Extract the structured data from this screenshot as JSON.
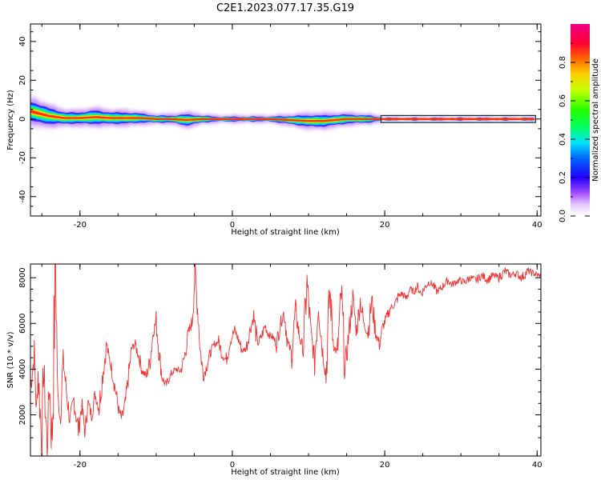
{
  "title": "C2E1.2023.077.17.35.G19",
  "chart_data": [
    {
      "type": "heatmap",
      "xlabel": "Height of straight line (km)",
      "ylabel": "Frequency (Hz)",
      "xlim": [
        -26.5,
        40.5
      ],
      "ylim": [
        -50,
        49
      ],
      "xticks": [
        "-20",
        "0",
        "20",
        "40"
      ],
      "yticks": [
        "-40",
        "-20",
        "0",
        "20",
        "40"
      ],
      "colorbar": {
        "label": "Normalized spectral amplitude",
        "range": [
          0.0,
          1.0
        ],
        "ticks": [
          "0.0",
          "0.2",
          "0.4",
          "0.6",
          "0.8"
        ],
        "colormap": "rainbow (white-violet-blue-cyan-green-yellow-orange-red-magenta)"
      },
      "ridge": {
        "description": "Spectral energy concentrated near 0 Hz across all heights; broader spread at low heights",
        "x": [
          -26.5,
          -24,
          -22,
          -20,
          -18,
          -16,
          -14,
          -12,
          -10,
          -8,
          -6,
          -4,
          -2,
          0,
          5,
          10,
          12,
          15,
          18,
          20,
          25,
          30,
          35,
          40
        ],
        "frequency_center": [
          4,
          1.5,
          0.5,
          0.5,
          1,
          0.5,
          0.5,
          0.5,
          0,
          0,
          -0.5,
          0,
          0,
          0,
          0,
          -1,
          -1,
          0,
          0,
          0,
          0,
          0,
          0,
          0
        ],
        "spread_hz": [
          9,
          7,
          5,
          5,
          6,
          5,
          5,
          4,
          3,
          3,
          5,
          3,
          2,
          2,
          2,
          5,
          5,
          4,
          3,
          1,
          1,
          1,
          1,
          1
        ]
      }
    },
    {
      "type": "line",
      "xlabel": "Height of straight line (km)",
      "ylabel": "SNR (10 * v/v)",
      "xlim": [
        -26.5,
        40.5
      ],
      "ylim": [
        200,
        8600
      ],
      "xticks": [
        "-20",
        "0",
        "20",
        "40"
      ],
      "yticks": [
        "2000",
        "4000",
        "6000",
        "8000"
      ],
      "series": [
        {
          "color": "#ee3333",
          "x": [
            -26.5,
            -26,
            -25.7,
            -25.5,
            -25,
            -24.8,
            -24.3,
            -24,
            -23.7,
            -23.2,
            -22.9,
            -22.6,
            -22.2,
            -21.8,
            -21.3,
            -20.8,
            -20.2,
            -19.8,
            -19.3,
            -19,
            -18.5,
            -18,
            -17.5,
            -17,
            -16.5,
            -16.2,
            -15.8,
            -15.3,
            -14.9,
            -14.5,
            -14,
            -13.6,
            -13.2,
            -12.8,
            -12.3,
            -11.8,
            -11.3,
            -10.8,
            -10.4,
            -10,
            -9.6,
            -9.2,
            -8.7,
            -8.3,
            -7.8,
            -7.3,
            -6.8,
            -6.3,
            -5.8,
            -5.3,
            -4.9,
            -4.5,
            -4.2,
            -3.8,
            -3.3,
            -2.8,
            -2.3,
            -1.8,
            -1.3,
            -0.8,
            -0.3,
            0.3,
            0.8,
            1.3,
            1.8,
            2.3,
            2.8,
            3.3,
            3.8,
            4.3,
            4.8,
            5.3,
            5.8,
            6.3,
            6.8,
            7.3,
            7.8,
            8.3,
            8.8,
            9.3,
            9.8,
            10.3,
            10.8,
            11.3,
            11.8,
            12.3,
            12.8,
            13.3,
            13.8,
            14.3,
            14.8,
            15.3,
            15.8,
            16.3,
            16.8,
            17.3,
            17.8,
            18.3,
            18.8,
            19.3,
            19.8,
            20.3,
            20.8,
            21.3,
            21.8,
            22.3,
            22.8,
            23.3,
            23.8,
            24.3,
            24.8,
            25.3,
            25.8,
            26.3,
            26.8,
            27.3,
            27.8,
            28.3,
            28.8,
            29.3,
            29.8,
            30.5,
            31.2,
            32,
            32.8,
            33.5,
            34.2,
            35,
            35.8,
            36.5,
            37.2,
            38,
            38.8,
            39.5,
            40.2,
            40.5
          ],
          "y": [
            3200,
            4600,
            2100,
            3900,
            800,
            4100,
            600,
            3500,
            500,
            8500,
            2800,
            1900,
            4400,
            3100,
            1700,
            2700,
            1300,
            2400,
            1200,
            2600,
            2000,
            2900,
            2300,
            3800,
            5100,
            4500,
            4000,
            3000,
            2200,
            1800,
            2600,
            3800,
            4900,
            5100,
            4600,
            3900,
            3700,
            4400,
            5600,
            6100,
            4700,
            3600,
            3300,
            3600,
            3900,
            4000,
            3900,
            4500,
            5500,
            6100,
            8200,
            6400,
            4800,
            3700,
            4200,
            4800,
            5100,
            5200,
            4600,
            4400,
            5200,
            5700,
            5300,
            4800,
            4900,
            5700,
            6300,
            5100,
            5400,
            5900,
            5500,
            5400,
            5100,
            6000,
            6500,
            5100,
            4700,
            6600,
            5400,
            4900,
            7800,
            5600,
            4400,
            6900,
            4900,
            3800,
            7400,
            5000,
            4700,
            7300,
            4000,
            5600,
            7100,
            5700,
            7000,
            5900,
            5600,
            7000,
            5600,
            5100,
            5900,
            6300,
            6700,
            6800,
            7200,
            7300,
            7100,
            7500,
            7400,
            7600,
            7300,
            7600,
            7800,
            7700,
            7400,
            7500,
            7700,
            7900,
            7700,
            7800,
            7900,
            7800,
            8000,
            7900,
            8100,
            7900,
            8100,
            8000,
            8300,
            8100,
            8200,
            8000,
            8300,
            8200,
            8100,
            8100
          ]
        }
      ]
    }
  ]
}
